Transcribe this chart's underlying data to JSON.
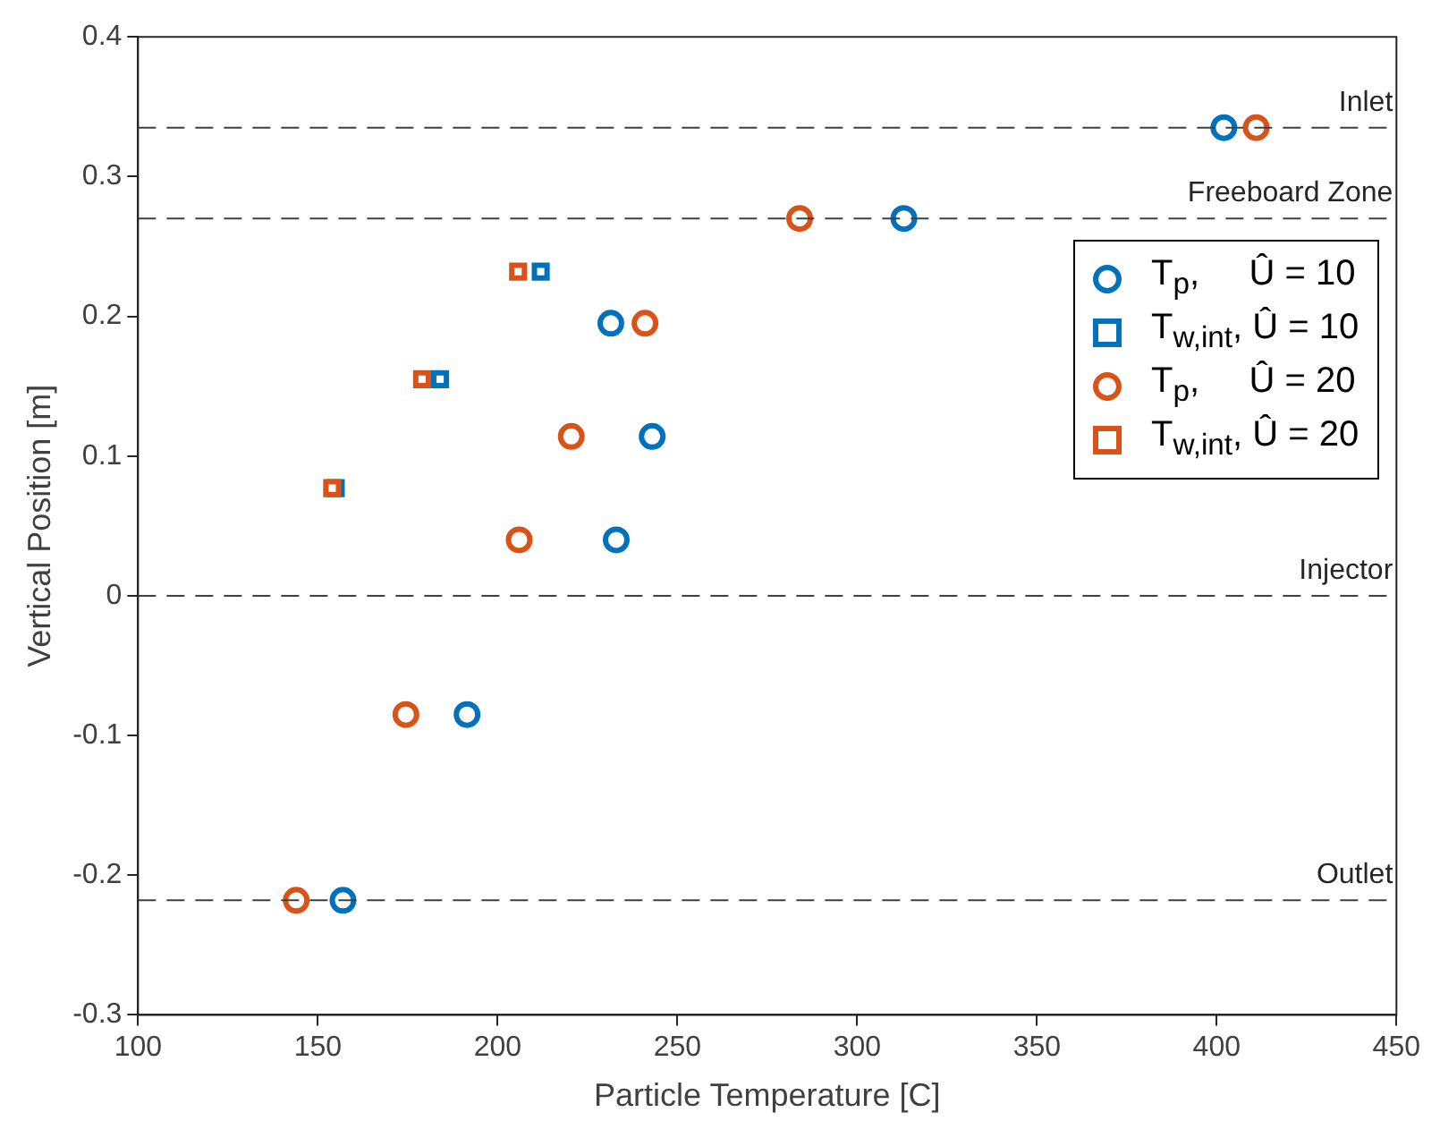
{
  "chart_data": {
    "type": "scatter",
    "xlabel": "Particle Temperature [C]",
    "ylabel": "Vertical Position [m]",
    "xlim": [
      100,
      450
    ],
    "xticks": [
      100,
      150,
      200,
      250,
      300,
      350,
      400,
      450
    ],
    "ylim": [
      -0.3,
      0.4
    ],
    "yticks": [
      -0.3,
      -0.2,
      -0.1,
      0,
      0.1,
      0.2,
      0.3,
      0.4
    ],
    "grid": false,
    "legend": "right",
    "series": [
      {
        "name": "T$_{p}$,     Û = 10",
        "color": "#0072bd",
        "marker": "circle",
        "x": [
          402,
          313,
          231.5,
          243,
          233,
          191.5,
          157
        ],
        "values": [
          0.335,
          0.27,
          0.195,
          0.114,
          0.04,
          -0.085,
          -0.218
        ]
      },
      {
        "name": "T$_{w,int}$, Û = 10",
        "color": "#0072bd",
        "marker": "square",
        "x": [
          212,
          184,
          155
        ],
        "values": [
          0.232,
          0.155,
          0.077
        ]
      },
      {
        "name": "T$_{p}$,     Û = 20",
        "color": "#d95319",
        "marker": "circle",
        "x": [
          411,
          284,
          241,
          220.5,
          206,
          174.5,
          144
        ],
        "values": [
          0.335,
          0.27,
          0.195,
          0.114,
          0.04,
          -0.085,
          -0.218
        ]
      },
      {
        "name": "T$_{w,int}$, Û = 20",
        "color": "#d95319",
        "marker": "square",
        "x": [
          205.7,
          179,
          154
        ],
        "values": [
          0.232,
          0.155,
          0.077
        ]
      }
    ],
    "ref_lines": [
      {
        "axis": "y",
        "value": 0.335,
        "label": "Inlet",
        "line_style": "dashed"
      },
      {
        "axis": "y",
        "value": 0.27,
        "label": "Freeboard Zone",
        "line_style": "dashed"
      },
      {
        "axis": "y",
        "value": 0,
        "label": "Injector",
        "line_style": "dashed"
      },
      {
        "axis": "y",
        "value": -0.218,
        "label": "Outlet",
        "line_style": "dashed"
      }
    ]
  }
}
